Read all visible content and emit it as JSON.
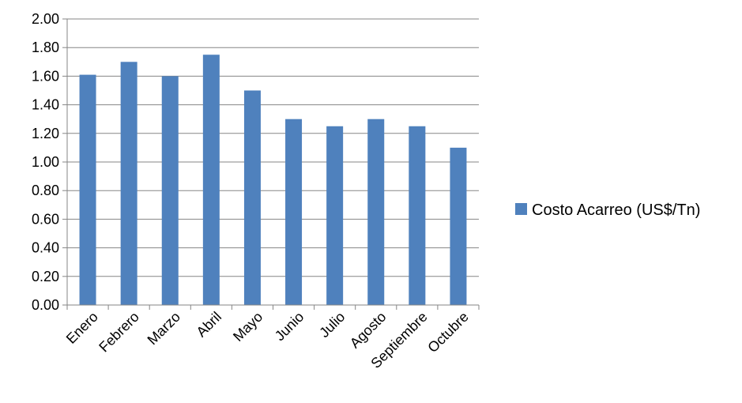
{
  "chart_data": {
    "type": "bar",
    "categories": [
      "Enero",
      "Febrero",
      "Marzo",
      "Abril",
      "Mayo",
      "Junio",
      "Julio",
      "Agosto",
      "Septiembre",
      "Octubre"
    ],
    "series": [
      {
        "name": "Costo Acarreo (US$/Tn)",
        "values": [
          1.61,
          1.7,
          1.6,
          1.75,
          1.5,
          1.3,
          1.25,
          1.3,
          1.25,
          1.1
        ],
        "color": "#4f81bd"
      }
    ],
    "ylim": [
      0,
      2.0
    ],
    "yticks": [
      "0.00",
      "0.20",
      "0.40",
      "0.60",
      "0.80",
      "1.00",
      "1.20",
      "1.40",
      "1.60",
      "1.80",
      "2.00"
    ],
    "grid": true,
    "legend_position": "right"
  }
}
